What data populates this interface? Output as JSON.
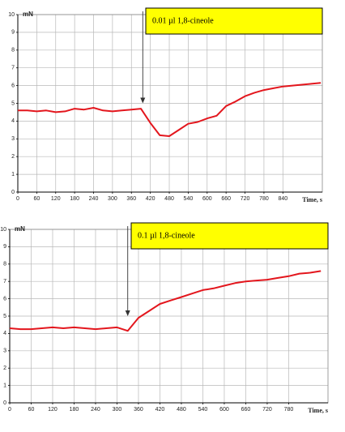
{
  "chart_data": [
    {
      "type": "line",
      "y_label": "mN",
      "x_label": "Time, s",
      "annotation": {
        "text": "0.01 µl    1,8-cineole",
        "x": 396,
        "y": 5
      },
      "x": [
        0,
        30,
        60,
        90,
        120,
        150,
        180,
        210,
        240,
        270,
        300,
        330,
        360,
        390,
        420,
        450,
        480,
        510,
        540,
        570,
        600,
        630,
        660,
        690,
        720,
        750,
        780,
        810,
        840,
        870,
        900,
        930,
        960
      ],
      "series": [
        {
          "color": "#e3161d",
          "values": [
            4.6,
            4.6,
            4.55,
            4.6,
            4.5,
            4.55,
            4.7,
            4.65,
            4.75,
            4.6,
            4.55,
            4.6,
            4.65,
            4.7,
            3.9,
            3.2,
            3.15,
            3.5,
            3.85,
            3.95,
            4.15,
            4.3,
            4.85,
            5.1,
            5.4,
            5.6,
            5.75,
            5.85,
            5.95,
            6.0,
            6.05,
            6.1,
            6.15
          ]
        }
      ],
      "xlim": [
        0,
        965
      ],
      "xticks": [
        0,
        60,
        120,
        180,
        240,
        300,
        360,
        420,
        480,
        540,
        600,
        660,
        720,
        780,
        840
      ],
      "ylim": [
        0,
        10
      ],
      "yticks": [
        0,
        1,
        2,
        3,
        4,
        5,
        6,
        7,
        8,
        9,
        10
      ],
      "grid": true
    },
    {
      "type": "line",
      "y_label": "mN",
      "x_label": "Time, s",
      "annotation": {
        "text": "0.1 µl    1,8-cineole",
        "x": 330,
        "y": 5
      },
      "x": [
        0,
        30,
        60,
        90,
        120,
        150,
        180,
        210,
        240,
        270,
        300,
        330,
        360,
        390,
        420,
        450,
        480,
        510,
        540,
        570,
        600,
        630,
        660,
        690,
        720,
        750,
        780,
        810,
        840,
        870
      ],
      "series": [
        {
          "color": "#e3161d",
          "values": [
            4.3,
            4.25,
            4.25,
            4.3,
            4.35,
            4.3,
            4.35,
            4.3,
            4.25,
            4.3,
            4.35,
            4.15,
            4.9,
            5.3,
            5.7,
            5.9,
            6.1,
            6.3,
            6.5,
            6.6,
            6.75,
            6.9,
            7.0,
            7.05,
            7.1,
            7.2,
            7.3,
            7.45,
            7.5,
            7.6
          ]
        }
      ],
      "xlim": [
        0,
        890
      ],
      "xticks": [
        0,
        60,
        120,
        180,
        240,
        300,
        360,
        420,
        480,
        540,
        600,
        660,
        720,
        780
      ],
      "ylim": [
        0,
        10
      ],
      "yticks": [
        0,
        1,
        2,
        3,
        4,
        5,
        6,
        7,
        8,
        9,
        10
      ],
      "grid": true
    }
  ]
}
